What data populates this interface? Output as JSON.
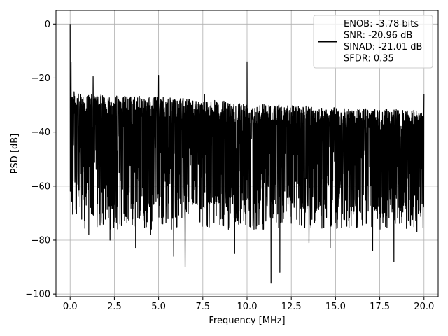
{
  "chart_data": {
    "type": "line",
    "title": "",
    "xlabel": "Frequency [MHz]",
    "ylabel": "PSD [dB]",
    "xlim": [
      -0.8,
      20.8
    ],
    "ylim": [
      -101,
      5
    ],
    "x_ticks": [
      0.0,
      2.5,
      5.0,
      7.5,
      10.0,
      12.5,
      15.0,
      17.5,
      20.0
    ],
    "x_tick_labels": [
      "0.0",
      "2.5",
      "5.0",
      "7.5",
      "10.0",
      "12.5",
      "15.0",
      "17.5",
      "20.0"
    ],
    "y_ticks": [
      0,
      -20,
      -40,
      -60,
      -80,
      -100
    ],
    "y_tick_labels": [
      "0",
      "−20",
      "−40",
      "−60",
      "−80",
      "−100"
    ],
    "grid": true,
    "line_color": "#000000",
    "legend": {
      "position": "top-right",
      "entries": [
        "ENOB: -3.78 bits",
        "SNR: -20.96 dB",
        "SINAD: -21.01 dB",
        "SFDR: 0.35"
      ]
    },
    "series": [
      {
        "x_range": [
          0.0,
          20.0
        ],
        "noise_ceiling": [
          [
            0.0,
            -22
          ],
          [
            0.5,
            -24
          ],
          [
            5.0,
            -25
          ],
          [
            10.0,
            -27
          ],
          [
            15.0,
            -29
          ],
          [
            20.0,
            -30
          ]
        ],
        "noise_floor_typical": -70,
        "noise_minimum": -96,
        "deep_nulls": [
          [
            1.05,
            -78
          ],
          [
            2.25,
            -80
          ],
          [
            3.7,
            -83
          ],
          [
            4.55,
            -78
          ],
          [
            5.85,
            -86
          ],
          [
            6.5,
            -90
          ],
          [
            7.6,
            -80
          ],
          [
            9.3,
            -85
          ],
          [
            11.35,
            -96
          ],
          [
            11.85,
            -92
          ],
          [
            13.5,
            -81
          ],
          [
            14.7,
            -83
          ],
          [
            17.1,
            -84
          ],
          [
            18.3,
            -88
          ],
          [
            19.6,
            -77
          ]
        ],
        "peaks": [
          [
            0.0,
            0
          ],
          [
            0.05,
            -14
          ],
          [
            1.3,
            -19.5
          ],
          [
            5.0,
            -19
          ],
          [
            7.6,
            -26
          ],
          [
            10.0,
            -14
          ],
          [
            20.0,
            -26
          ]
        ]
      }
    ]
  }
}
